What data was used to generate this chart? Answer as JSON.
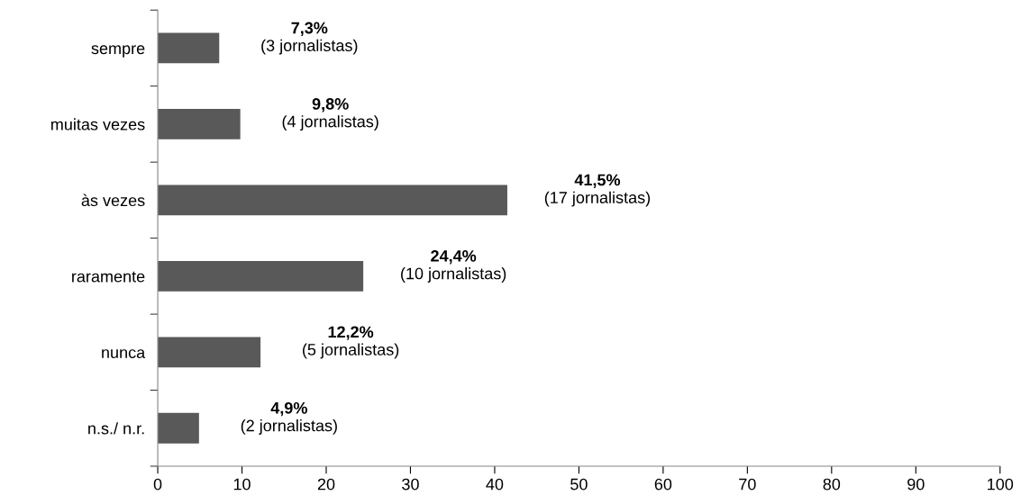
{
  "chart_data": {
    "type": "bar",
    "orientation": "horizontal",
    "categories": [
      "sempre",
      "muitas vezes",
      "às vezes",
      "raramente",
      "nunca",
      "n.s./ n.r."
    ],
    "values": [
      7.3,
      9.8,
      41.5,
      24.4,
      12.2,
      4.9
    ],
    "color": "#595959",
    "value_labels": [
      "7,3%\n(3 jornalistas)",
      "9,8%\n(4 jornalistas)",
      "41,5%\n(17 jornalistas)",
      "24,4%\n(10 jornalistas)",
      "12,2%\n(5 jornalistas)",
      "4,9%\n(2 jornalistas)"
    ],
    "xlim": [
      0,
      100
    ],
    "xticks": [
      0,
      10,
      20,
      30,
      40,
      50,
      60,
      70,
      80,
      90,
      100
    ],
    "grid": false,
    "legend": false
  }
}
